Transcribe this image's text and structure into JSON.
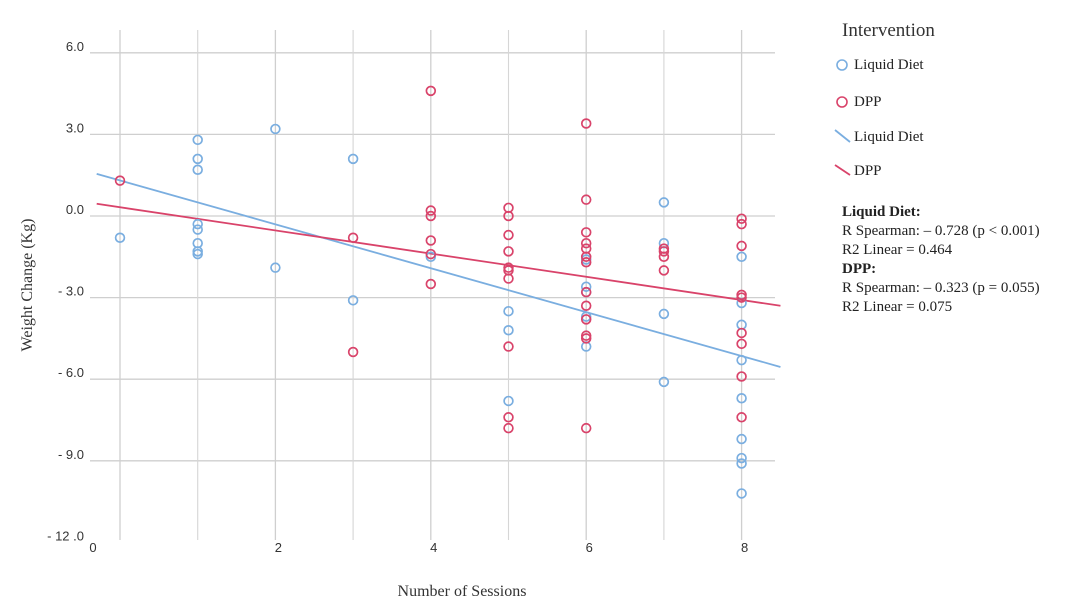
{
  "chart_data": {
    "type": "scatter",
    "xlabel": "Number of Sessions",
    "ylabel": "Weight Change (Kg)",
    "xlim": [
      -0.3,
      8.5
    ],
    "ylim": [
      -12.0,
      7.0
    ],
    "x_ticks": [
      0,
      2,
      4,
      6,
      8
    ],
    "x_tick_labels": [
      "0",
      "2",
      "4",
      "6",
      "8"
    ],
    "y_ticks": [
      6.0,
      3.0,
      0.0,
      -3.0,
      -6.0,
      -9.0,
      -12.0
    ],
    "y_tick_labels": [
      "6.0",
      "3.0",
      "0.0",
      "- 3.0",
      "- 6.0",
      "- 9.0",
      "- 12 .0"
    ],
    "grid": true,
    "legend_title": "Intervention",
    "series": [
      {
        "name": "Liquid Diet",
        "color": "#7aaee0",
        "points": [
          [
            0,
            -0.8
          ],
          [
            1,
            2.8
          ],
          [
            1,
            2.1
          ],
          [
            1,
            1.7
          ],
          [
            1,
            -0.3
          ],
          [
            1,
            -0.5
          ],
          [
            1,
            -1.0
          ],
          [
            1,
            -1.3
          ],
          [
            1,
            -1.4
          ],
          [
            2,
            3.2
          ],
          [
            2,
            -1.9
          ],
          [
            3,
            2.1
          ],
          [
            3,
            -3.1
          ],
          [
            4,
            -1.5
          ],
          [
            5,
            -3.5
          ],
          [
            5,
            -4.2
          ],
          [
            5,
            -6.8
          ],
          [
            6,
            -1.6
          ],
          [
            6,
            -2.6
          ],
          [
            6,
            -2.8
          ],
          [
            6,
            -3.7
          ],
          [
            6,
            -4.8
          ],
          [
            7,
            0.5
          ],
          [
            7,
            -1.0
          ],
          [
            7,
            -3.6
          ],
          [
            7,
            -6.1
          ],
          [
            8,
            -1.5
          ],
          [
            8,
            -3.2
          ],
          [
            8,
            -4.0
          ],
          [
            8,
            -5.3
          ],
          [
            8,
            -6.7
          ],
          [
            8,
            -8.2
          ],
          [
            8,
            -8.9
          ],
          [
            8,
            -9.1
          ],
          [
            8,
            -10.2
          ]
        ]
      },
      {
        "name": "DPP",
        "color": "#d9436a",
        "points": [
          [
            0,
            1.3
          ],
          [
            3,
            -0.8
          ],
          [
            3,
            -5.0
          ],
          [
            4,
            4.6
          ],
          [
            4,
            0.2
          ],
          [
            4,
            0.0
          ],
          [
            4,
            -0.9
          ],
          [
            4,
            -1.4
          ],
          [
            4,
            -2.5
          ],
          [
            5,
            0.3
          ],
          [
            5,
            0.0
          ],
          [
            5,
            -0.7
          ],
          [
            5,
            -1.3
          ],
          [
            5,
            -1.9
          ],
          [
            5,
            -2.0
          ],
          [
            5,
            -2.3
          ],
          [
            5,
            -4.8
          ],
          [
            5,
            -7.4
          ],
          [
            5,
            -7.8
          ],
          [
            6,
            3.4
          ],
          [
            6,
            0.6
          ],
          [
            6,
            -0.6
          ],
          [
            6,
            -1.0
          ],
          [
            6,
            -1.2
          ],
          [
            6,
            -1.5
          ],
          [
            6,
            -1.7
          ],
          [
            6,
            -2.8
          ],
          [
            6,
            -3.3
          ],
          [
            6,
            -3.8
          ],
          [
            6,
            -4.4
          ],
          [
            6,
            -4.5
          ],
          [
            6,
            -7.8
          ],
          [
            7,
            -1.2
          ],
          [
            7,
            -1.3
          ],
          [
            7,
            -1.5
          ],
          [
            7,
            -2.0
          ],
          [
            8,
            -0.1
          ],
          [
            8,
            -0.3
          ],
          [
            8,
            -1.1
          ],
          [
            8,
            -2.9
          ],
          [
            8,
            -3.0
          ],
          [
            8,
            -4.3
          ],
          [
            8,
            -4.7
          ],
          [
            8,
            -5.9
          ],
          [
            8,
            -7.4
          ]
        ]
      }
    ],
    "fit_lines": [
      {
        "name": "Liquid Diet",
        "color": "#7aaee0",
        "from": [
          -0.3,
          1.55
        ],
        "to": [
          8.5,
          -5.55
        ]
      },
      {
        "name": "DPP",
        "color": "#d9436a",
        "from": [
          -0.3,
          0.45
        ],
        "to": [
          8.5,
          -3.3
        ]
      }
    ],
    "annotations": {
      "liquid_header": "Liquid Diet:",
      "liquid_spearman": "R Spearman: – 0.728 (p < 0.001)",
      "liquid_r2": "R2 Linear = 0.464",
      "dpp_header": "DPP:",
      "dpp_spearman": "R Spearman: – 0.323 (p = 0.055)",
      "dpp_r2": "R2 Linear = 0.075"
    }
  }
}
